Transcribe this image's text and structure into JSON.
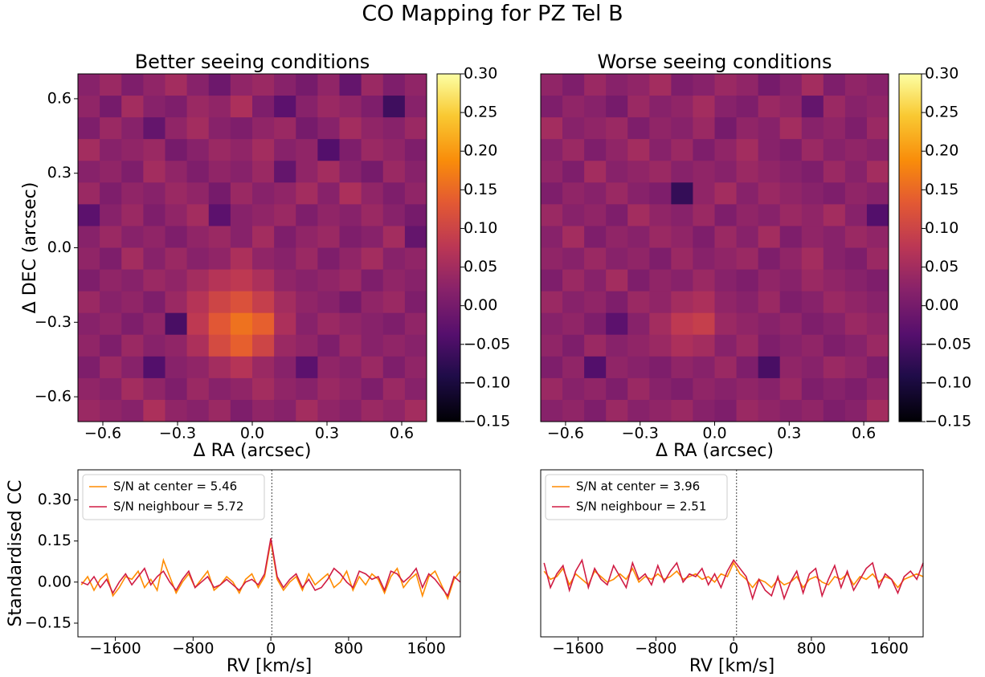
{
  "title": "CO Mapping for PZ Tel B",
  "chart_data": [
    {
      "type": "heatmap",
      "title": "Better seeing conditions",
      "xlabel": "Δ RA (arcsec)",
      "ylabel": "Δ DEC (arcsec)",
      "xlim": [
        -0.7,
        0.7
      ],
      "ylim": [
        -0.7,
        0.7
      ],
      "xticks": [
        {
          "value": -0.6,
          "label": "−0.6"
        },
        {
          "value": -0.3,
          "label": "−0.3"
        },
        {
          "value": 0,
          "label": "0.0"
        },
        0.3,
        0.6
      ],
      "yticks": [
        {
          "value": -0.6,
          "label": "−0.6"
        },
        {
          "value": -0.3,
          "label": "−0.3"
        },
        {
          "value": 0,
          "label": "0.0"
        },
        0.3,
        0.6
      ],
      "colormap": "inferno",
      "clim": [
        -0.15,
        0.3
      ],
      "cticks": [
        {
          "value": -0.15,
          "label": "−0.15"
        },
        {
          "value": -0.1,
          "label": "−0.10"
        },
        {
          "value": -0.05,
          "label": "−0.05"
        },
        {
          "value": 0,
          "label": "0.00"
        },
        0.05,
        {
          "value": 0.1,
          "label": "0.10"
        },
        0.15,
        {
          "value": 0.2,
          "label": "0.20"
        },
        0.25,
        {
          "value": 0.3,
          "label": "0.30"
        }
      ],
      "z": [
        [
          0.02,
          0.04,
          0.01,
          0.03,
          0.05,
          0.02,
          -0.01,
          0.03,
          0.04,
          0.02,
          0.0,
          0.03,
          -0.02,
          0.04,
          0.01,
          0.03
        ],
        [
          0.03,
          0.0,
          0.05,
          0.02,
          0.01,
          0.04,
          0.03,
          0.06,
          0.01,
          -0.03,
          0.02,
          0.04,
          0.03,
          0.01,
          -0.06,
          0.02
        ],
        [
          0.01,
          0.04,
          0.02,
          -0.02,
          0.03,
          0.05,
          0.02,
          0.01,
          0.03,
          0.04,
          0.0,
          0.02,
          0.05,
          0.03,
          0.02,
          0.04
        ],
        [
          0.05,
          0.02,
          0.03,
          0.04,
          0.0,
          0.02,
          0.04,
          0.03,
          0.05,
          0.02,
          0.03,
          -0.04,
          0.01,
          0.04,
          0.03,
          0.01
        ],
        [
          0.02,
          0.03,
          0.01,
          0.05,
          0.03,
          0.01,
          0.03,
          0.02,
          0.04,
          -0.02,
          0.03,
          0.05,
          0.02,
          0.0,
          0.04,
          0.02
        ],
        [
          0.04,
          0.01,
          0.03,
          0.02,
          0.04,
          0.03,
          0.0,
          0.04,
          0.02,
          0.03,
          0.05,
          0.02,
          0.06,
          0.03,
          0.01,
          0.03
        ],
        [
          -0.03,
          0.02,
          0.04,
          0.01,
          0.03,
          0.05,
          -0.03,
          0.02,
          0.03,
          0.04,
          0.01,
          0.03,
          0.02,
          0.04,
          0.02,
          0.0
        ],
        [
          0.02,
          0.04,
          0.02,
          0.03,
          0.01,
          0.03,
          0.04,
          0.02,
          0.05,
          0.01,
          0.03,
          0.04,
          0.01,
          0.02,
          0.05,
          -0.02
        ],
        [
          0.03,
          0.01,
          0.05,
          0.02,
          0.04,
          0.02,
          0.03,
          0.06,
          0.03,
          0.02,
          0.04,
          0.01,
          0.03,
          0.05,
          0.02,
          0.03
        ],
        [
          0.01,
          0.03,
          0.02,
          0.04,
          0.03,
          0.05,
          0.07,
          0.08,
          0.06,
          0.03,
          0.02,
          0.03,
          0.04,
          0.01,
          0.03,
          0.02
        ],
        [
          0.04,
          0.02,
          0.03,
          0.01,
          0.04,
          0.07,
          0.1,
          0.12,
          0.09,
          0.05,
          0.03,
          0.02,
          0.0,
          0.03,
          0.04,
          0.01
        ],
        [
          0.02,
          0.03,
          0.01,
          0.03,
          -0.05,
          0.08,
          0.13,
          0.16,
          0.14,
          0.06,
          0.02,
          0.04,
          0.03,
          0.02,
          0.01,
          0.03
        ],
        [
          0.03,
          0.01,
          0.04,
          0.02,
          0.03,
          0.06,
          0.11,
          0.14,
          0.1,
          0.04,
          0.03,
          0.01,
          0.04,
          0.02,
          0.03,
          0.02
        ],
        [
          0.01,
          0.04,
          0.02,
          -0.04,
          0.02,
          0.03,
          0.05,
          0.07,
          0.04,
          0.02,
          -0.03,
          0.03,
          0.02,
          0.04,
          0.01,
          0.03
        ],
        [
          0.03,
          0.02,
          0.05,
          0.03,
          0.01,
          0.04,
          0.02,
          0.03,
          0.05,
          0.03,
          0.02,
          0.04,
          0.03,
          0.01,
          0.04,
          0.02
        ],
        [
          0.04,
          0.03,
          0.02,
          0.06,
          0.03,
          0.02,
          0.04,
          0.01,
          0.03,
          0.02,
          0.05,
          0.03,
          0.02,
          0.04,
          0.03,
          0.05
        ]
      ]
    },
    {
      "type": "heatmap",
      "title": "Worse seeing conditions",
      "xlabel": "Δ RA (arcsec)",
      "xlim": [
        -0.7,
        0.7
      ],
      "ylim": [
        -0.7,
        0.7
      ],
      "xticks": [
        {
          "value": -0.6,
          "label": "−0.6"
        },
        {
          "value": -0.3,
          "label": "−0.3"
        },
        {
          "value": 0,
          "label": "0.0"
        },
        0.3,
        0.6
      ],
      "colormap": "inferno",
      "clim": [
        -0.15,
        0.3
      ],
      "cticks": [
        {
          "value": -0.15,
          "label": "−0.15"
        },
        {
          "value": -0.1,
          "label": "−0.10"
        },
        {
          "value": -0.05,
          "label": "−0.05"
        },
        {
          "value": 0,
          "label": "0.00"
        },
        0.05,
        {
          "value": 0.1,
          "label": "0.10"
        },
        0.15,
        {
          "value": 0.2,
          "label": "0.20"
        },
        0.25,
        {
          "value": 0.3,
          "label": "0.30"
        }
      ],
      "z": [
        [
          0.03,
          0.01,
          0.04,
          0.02,
          0.03,
          0.05,
          0.01,
          0.02,
          0.04,
          0.03,
          0.0,
          0.02,
          0.05,
          0.01,
          0.03,
          0.02
        ],
        [
          0.01,
          0.03,
          0.02,
          0.0,
          0.04,
          0.02,
          0.03,
          0.05,
          0.02,
          0.01,
          0.04,
          0.03,
          -0.02,
          0.04,
          0.02,
          0.03
        ],
        [
          0.05,
          0.02,
          0.03,
          0.04,
          0.01,
          0.03,
          0.02,
          0.04,
          0.0,
          0.03,
          0.02,
          0.05,
          0.02,
          0.03,
          0.01,
          0.04
        ],
        [
          0.02,
          0.04,
          0.01,
          0.03,
          0.05,
          0.02,
          0.04,
          0.01,
          0.03,
          0.05,
          0.02,
          0.01,
          0.04,
          0.02,
          0.03,
          0.02
        ],
        [
          0.03,
          0.01,
          0.05,
          0.02,
          0.03,
          0.04,
          0.02,
          0.03,
          0.02,
          0.04,
          0.03,
          0.02,
          0.01,
          0.04,
          0.02,
          0.05
        ],
        [
          0.01,
          0.03,
          0.02,
          0.04,
          0.02,
          0.01,
          -0.07,
          0.03,
          0.05,
          0.02,
          0.04,
          0.03,
          0.02,
          0.01,
          0.03,
          0.02
        ],
        [
          0.04,
          0.02,
          0.03,
          0.01,
          0.05,
          0.03,
          0.02,
          0.04,
          0.01,
          0.03,
          0.02,
          0.04,
          0.03,
          0.05,
          0.02,
          -0.04
        ],
        [
          0.02,
          0.05,
          0.01,
          0.03,
          0.02,
          0.04,
          0.03,
          0.01,
          0.04,
          0.02,
          0.05,
          0.01,
          0.03,
          0.02,
          0.04,
          0.03
        ],
        [
          0.03,
          0.02,
          0.04,
          0.02,
          0.03,
          0.01,
          0.04,
          0.02,
          0.03,
          0.04,
          0.01,
          0.03,
          0.05,
          0.02,
          0.01,
          0.04
        ],
        [
          0.01,
          0.04,
          0.02,
          0.05,
          0.01,
          0.03,
          0.02,
          0.04,
          0.02,
          0.01,
          0.03,
          0.02,
          0.04,
          0.03,
          0.02,
          0.01
        ],
        [
          0.04,
          0.02,
          0.03,
          0.01,
          0.04,
          0.03,
          0.05,
          0.06,
          0.03,
          0.02,
          0.04,
          0.01,
          0.02,
          0.04,
          0.03,
          0.02
        ],
        [
          0.02,
          0.03,
          0.01,
          -0.03,
          0.02,
          0.05,
          0.08,
          0.09,
          0.04,
          0.03,
          0.02,
          0.03,
          0.01,
          0.02,
          0.04,
          0.03
        ],
        [
          0.03,
          0.01,
          0.04,
          0.02,
          0.03,
          0.04,
          0.06,
          0.05,
          0.02,
          0.04,
          0.01,
          0.02,
          0.03,
          0.01,
          0.02,
          0.04
        ],
        [
          0.01,
          0.03,
          -0.04,
          0.03,
          0.02,
          0.01,
          0.03,
          0.02,
          0.04,
          0.01,
          -0.05,
          0.03,
          0.02,
          0.04,
          0.03,
          0.01
        ],
        [
          0.04,
          0.02,
          0.03,
          0.01,
          0.04,
          0.02,
          0.01,
          0.03,
          0.02,
          0.03,
          0.02,
          0.04,
          0.01,
          0.02,
          0.01,
          0.03
        ],
        [
          0.02,
          0.03,
          0.01,
          0.04,
          0.02,
          0.03,
          0.04,
          0.02,
          0.01,
          0.04,
          0.03,
          0.02,
          0.03,
          0.01,
          0.02,
          0.05
        ]
      ]
    },
    {
      "type": "line",
      "xlabel": "RV [km/s]",
      "ylabel": "Standardised CC",
      "xlim": [
        -1985,
        1950
      ],
      "ylim": [
        -0.2,
        0.41
      ],
      "xticks": [
        {
          "value": -1600,
          "label": "−1600"
        },
        {
          "value": -800,
          "label": "−800"
        },
        0,
        800,
        1600
      ],
      "yticks": [
        {
          "value": -0.15,
          "label": "−0.15"
        },
        {
          "value": 0,
          "label": "0.00"
        },
        0.15,
        {
          "value": 0.3,
          "label": "0.30"
        }
      ],
      "vline": 10,
      "x": [
        -1950,
        -1885,
        -1820,
        -1755,
        -1690,
        -1625,
        -1560,
        -1495,
        -1430,
        -1365,
        -1300,
        -1235,
        -1170,
        -1105,
        -1040,
        -975,
        -910,
        -845,
        -780,
        -715,
        -650,
        -585,
        -520,
        -455,
        -390,
        -325,
        -260,
        -195,
        -130,
        -65,
        0,
        65,
        130,
        195,
        260,
        325,
        390,
        455,
        520,
        585,
        650,
        715,
        780,
        845,
        910,
        975,
        1040,
        1105,
        1170,
        1235,
        1300,
        1365,
        1430,
        1495,
        1560,
        1625,
        1690,
        1755,
        1820,
        1885,
        1950
      ],
      "series": [
        {
          "name": "S/N at center = 5.46",
          "color": "#ff8c00",
          "values": [
            -0.01,
            0.02,
            -0.03,
            0.01,
            0.03,
            -0.05,
            -0.02,
            0.02,
            0.01,
            0.04,
            -0.02,
            0.01,
            -0.03,
            0.08,
            0.02,
            -0.04,
            0.0,
            0.03,
            -0.02,
            0.01,
            0.04,
            -0.03,
            -0.01,
            0.02,
            0.0,
            -0.04,
            0.01,
            0.03,
            -0.02,
            0.02,
            0.15,
            0.01,
            -0.03,
            0.0,
            0.02,
            -0.03,
            0.03,
            -0.01,
            0.01,
            0.03,
            -0.02,
            0.0,
            0.04,
            -0.03,
            0.02,
            -0.01,
            0.03,
            0.01,
            -0.04,
            0.02,
            0.05,
            -0.02,
            0.01,
            0.03,
            -0.05,
            0.02,
            0.04,
            -0.01,
            -0.06,
            0.01,
            0.04
          ]
        },
        {
          "name": "S/N neighbour = 5.72",
          "color": "#d01c44",
          "values": [
            0.0,
            -0.01,
            0.02,
            -0.02,
            0.01,
            -0.04,
            0.0,
            0.03,
            -0.01,
            0.02,
            0.05,
            -0.01,
            0.02,
            0.04,
            0.0,
            -0.03,
            0.01,
            0.04,
            -0.02,
            0.0,
            0.02,
            -0.02,
            -0.01,
            0.01,
            -0.01,
            -0.03,
            0.0,
            0.01,
            -0.01,
            0.03,
            0.16,
            0.02,
            -0.02,
            0.01,
            0.03,
            -0.02,
            0.01,
            -0.03,
            -0.02,
            0.01,
            0.05,
            0.03,
            0.0,
            -0.02,
            0.04,
            0.03,
            0.01,
            0.02,
            -0.03,
            0.04,
            0.03,
            0.0,
            0.02,
            0.05,
            -0.02,
            0.03,
            0.01,
            -0.02,
            -0.05,
            0.02,
            0.0
          ]
        }
      ]
    },
    {
      "type": "line",
      "xlabel": "RV [km/s]",
      "xlim": [
        -1985,
        1950
      ],
      "ylim": [
        -0.2,
        0.41
      ],
      "xticks": [
        {
          "value": -1600,
          "label": "−1600"
        },
        {
          "value": -800,
          "label": "−800"
        },
        0,
        800,
        1600
      ],
      "vline": 30,
      "x": [
        -1950,
        -1885,
        -1820,
        -1755,
        -1690,
        -1625,
        -1560,
        -1495,
        -1430,
        -1365,
        -1300,
        -1235,
        -1170,
        -1105,
        -1040,
        -975,
        -910,
        -845,
        -780,
        -715,
        -650,
        -585,
        -520,
        -455,
        -390,
        -325,
        -260,
        -195,
        -130,
        -65,
        0,
        65,
        130,
        195,
        260,
        325,
        390,
        455,
        520,
        585,
        650,
        715,
        780,
        845,
        910,
        975,
        1040,
        1105,
        1170,
        1235,
        1300,
        1365,
        1430,
        1495,
        1560,
        1625,
        1690,
        1755,
        1820,
        1885,
        1950
      ],
      "series": [
        {
          "name": "S/N at center = 3.96",
          "color": "#ff8c00",
          "values": [
            0.04,
            0.01,
            0.02,
            0.05,
            -0.01,
            0.03,
            0.01,
            -0.01,
            0.04,
            0.02,
            0.0,
            0.01,
            0.03,
            0.01,
            0.05,
            0.0,
            0.02,
            0.01,
            0.03,
            0.01,
            0.02,
            0.04,
            0.01,
            0.02,
            0.03,
            0.01,
            0.02,
            0.0,
            0.03,
            0.02,
            0.07,
            0.03,
            0.01,
            -0.02,
            0.01,
            0.0,
            -0.02,
            0.01,
            -0.01,
            0.0,
            0.02,
            -0.02,
            0.01,
            0.02,
            0.0,
            -0.01,
            0.02,
            0.01,
            0.03,
            -0.01,
            0.02,
            0.01,
            0.03,
            0.0,
            0.02,
            0.01,
            -0.02,
            0.01,
            0.02,
            0.03,
            0.02
          ]
        },
        {
          "name": "S/N neighbour = 2.51",
          "color": "#d01c44",
          "values": [
            0.07,
            -0.02,
            0.03,
            0.06,
            -0.03,
            0.04,
            0.08,
            -0.02,
            0.05,
            0.01,
            -0.01,
            0.06,
            0.02,
            -0.02,
            0.07,
            0.01,
            0.03,
            -0.01,
            0.06,
            0.0,
            0.04,
            0.07,
            0.0,
            0.03,
            0.02,
            0.05,
            -0.01,
            0.03,
            -0.02,
            0.04,
            0.08,
            0.05,
            0.02,
            -0.06,
            0.01,
            -0.03,
            -0.05,
            0.02,
            -0.06,
            0.0,
            0.04,
            -0.04,
            0.03,
            0.05,
            -0.05,
            0.01,
            0.06,
            -0.02,
            0.04,
            -0.03,
            0.01,
            0.05,
            0.07,
            -0.02,
            0.03,
            0.01,
            -0.04,
            0.02,
            0.04,
            0.01,
            0.07
          ]
        }
      ]
    }
  ]
}
